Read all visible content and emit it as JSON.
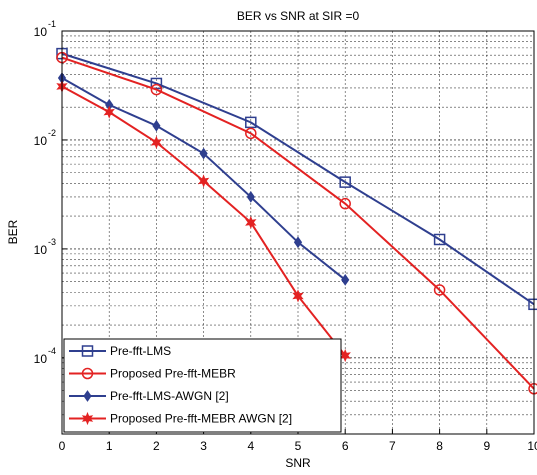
{
  "chart_data": {
    "type": "line",
    "title": "BER vs SNR at SIR =0",
    "xlabel": "SNR",
    "ylabel": "BER",
    "xlim": [
      0,
      10
    ],
    "ylim": [
      2e-05,
      0.1
    ],
    "yscale": "log",
    "grid": true,
    "x_ticks": [
      "0",
      "1",
      "2",
      "3",
      "4",
      "5",
      "6",
      "7",
      "8",
      "9",
      "10"
    ],
    "y_ticks": [
      {
        "base": "10",
        "exp": "-1",
        "value": 0.1
      },
      {
        "base": "10",
        "exp": "-2",
        "value": 0.01
      },
      {
        "base": "10",
        "exp": "-3",
        "value": 0.001
      },
      {
        "base": "10",
        "exp": "-4",
        "value": 0.0001
      }
    ],
    "legend_position": "bottom-left",
    "series": [
      {
        "name": "Pre-fft-LMS",
        "color": "#2f3f8f",
        "marker": "square",
        "points": [
          [
            0,
            0.062
          ],
          [
            2,
            0.033
          ],
          [
            4,
            0.0145
          ],
          [
            6,
            0.0041
          ],
          [
            8,
            0.00122
          ],
          [
            10,
            0.00031
          ]
        ]
      },
      {
        "name": "Proposed Pre-fft-MEBR",
        "color": "#e32222",
        "marker": "circle",
        "points": [
          [
            0,
            0.057
          ],
          [
            2,
            0.029
          ],
          [
            4,
            0.0115
          ],
          [
            6,
            0.0026
          ],
          [
            8,
            0.00042
          ],
          [
            10,
            5.2e-05
          ]
        ]
      },
      {
        "name": " Pre-fft-LMS-AWGN [2]",
        "color": "#2f3f8f",
        "marker": "diamond",
        "points": [
          [
            0,
            0.037
          ],
          [
            1,
            0.021
          ],
          [
            2,
            0.0135
          ],
          [
            3,
            0.0075
          ],
          [
            4,
            0.003
          ],
          [
            5,
            0.00115
          ],
          [
            6,
            0.00052
          ]
        ]
      },
      {
        "name": "Proposed Pre-fft-MEBR AWGN [2]",
        "color": "#e32222",
        "marker": "star",
        "points": [
          [
            0,
            0.031
          ],
          [
            1,
            0.018
          ],
          [
            2,
            0.0095
          ],
          [
            3,
            0.0042
          ],
          [
            4,
            0.00175
          ],
          [
            5,
            0.00037
          ],
          [
            6,
            0.000105
          ]
        ]
      }
    ]
  }
}
